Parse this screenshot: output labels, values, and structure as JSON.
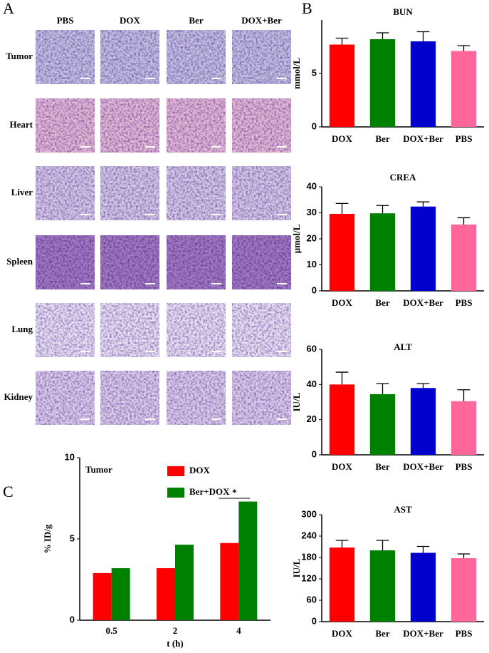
{
  "panel_letters": [
    "A",
    "B",
    "C"
  ],
  "histology": {
    "columns": [
      "PBS",
      "DOX",
      "Ber",
      "DOX+Ber"
    ],
    "rows": [
      "Tumor",
      "Heart",
      "Liver",
      "Spleen",
      "Lung",
      "Kidney"
    ]
  },
  "chart_data": [
    {
      "type": "bar",
      "title": "BUN",
      "y_label": "mmol/L",
      "categories": [
        "DOX",
        "Ber",
        "DOX+Ber",
        "PBS"
      ],
      "values": [
        7.7,
        8.2,
        8.0,
        7.1
      ],
      "errors": [
        0.6,
        0.6,
        0.9,
        0.5
      ],
      "colors": [
        "#ff0000",
        "#008000",
        "#0000cc",
        "#ff6699"
      ],
      "ylim": [
        0,
        10
      ],
      "yticks": [
        0,
        5
      ]
    },
    {
      "type": "bar",
      "title": "CREA",
      "y_label": "μmol/L",
      "categories": [
        "DOX",
        "Ber",
        "DOX+Ber",
        "PBS"
      ],
      "values": [
        29.6,
        29.8,
        32.4,
        25.5
      ],
      "errors": [
        4,
        3,
        1.8,
        2.6
      ],
      "colors": [
        "#ff0000",
        "#008000",
        "#0000cc",
        "#ff6699"
      ],
      "ylim": [
        0,
        40
      ],
      "yticks": [
        0,
        10,
        20,
        30,
        40
      ]
    },
    {
      "type": "bar",
      "title": "ALT",
      "y_label": "IU/L",
      "categories": [
        "DOX",
        "Ber",
        "DOX+Ber",
        "PBS"
      ],
      "values": [
        40,
        34.5,
        38,
        30.5
      ],
      "errors": [
        7,
        6,
        2.5,
        6.5
      ],
      "colors": [
        "#ff0000",
        "#008000",
        "#0000cc",
        "#ff6699"
      ],
      "ylim": [
        0,
        60
      ],
      "yticks": [
        0,
        20,
        40,
        60
      ]
    },
    {
      "type": "bar",
      "title": "AST",
      "y_label": "IU/L",
      "categories": [
        "DOX",
        "Ber",
        "DOX+Ber",
        "PBS"
      ],
      "values": [
        208,
        200,
        193,
        178
      ],
      "errors": [
        20,
        28,
        18,
        12
      ],
      "colors": [
        "#ff0000",
        "#008000",
        "#0000cc",
        "#ff6699"
      ],
      "ylim": [
        0,
        300
      ],
      "yticks": [
        0,
        60,
        120,
        180,
        240,
        300
      ]
    },
    {
      "type": "grouped_bar",
      "title": "Tumor",
      "y_label": "% ID/g",
      "x_label": "t (h)",
      "categories": [
        "0.5",
        "2",
        "4"
      ],
      "series": [
        {
          "name": "DOX",
          "color": "#ff0000",
          "values": [
            2.9,
            3.2,
            4.75
          ]
        },
        {
          "name": "Ber+DOX",
          "color": "#008000",
          "values": [
            3.2,
            4.65,
            7.3
          ]
        }
      ],
      "ylim": [
        0,
        10
      ],
      "yticks": [
        0,
        5,
        10
      ],
      "annotation": "*"
    }
  ]
}
